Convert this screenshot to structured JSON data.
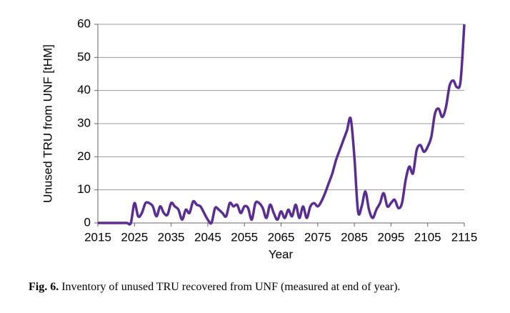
{
  "chart_data": {
    "type": "line",
    "xlabel": "Year",
    "ylabel": "Unused TRU from UNF [tHM]",
    "x": [
      2015,
      2016,
      2017,
      2018,
      2019,
      2020,
      2021,
      2022,
      2023,
      2024,
      2025,
      2026,
      2027,
      2028,
      2029,
      2030,
      2031,
      2032,
      2033,
      2034,
      2035,
      2036,
      2037,
      2038,
      2039,
      2040,
      2041,
      2042,
      2043,
      2044,
      2045,
      2046,
      2047,
      2048,
      2049,
      2050,
      2051,
      2052,
      2053,
      2054,
      2055,
      2056,
      2057,
      2058,
      2059,
      2060,
      2061,
      2062,
      2063,
      2064,
      2065,
      2066,
      2067,
      2068,
      2069,
      2070,
      2071,
      2072,
      2073,
      2074,
      2075,
      2076,
      2077,
      2078,
      2079,
      2080,
      2081,
      2082,
      2083,
      2084,
      2085,
      2086,
      2087,
      2088,
      2089,
      2090,
      2091,
      2092,
      2093,
      2094,
      2095,
      2096,
      2097,
      2098,
      2099,
      2100,
      2101,
      2102,
      2103,
      2104,
      2105,
      2106,
      2107,
      2108,
      2109,
      2110,
      2111,
      2112,
      2113,
      2114,
      2115
    ],
    "series": [
      {
        "name": "Unused TRU",
        "color": "#5a2d91",
        "values": [
          0,
          0,
          0,
          0,
          0,
          0,
          0,
          0,
          0,
          0,
          6,
          2,
          3,
          6,
          6,
          5,
          2,
          5,
          3,
          2.5,
          6,
          5,
          4,
          1,
          4,
          3,
          6.5,
          5.5,
          5,
          3,
          1,
          0,
          4.5,
          4,
          3,
          2,
          6,
          5,
          5.5,
          3,
          5,
          4.5,
          1,
          6,
          6,
          4.5,
          1.5,
          5.5,
          3,
          1,
          3.5,
          1.5,
          4,
          2,
          5.5,
          1.5,
          5,
          1.5,
          5,
          6,
          5,
          6.5,
          9,
          12,
          15,
          19,
          22,
          25,
          28,
          31.5,
          20,
          3.5,
          5,
          9.5,
          4,
          1.5,
          4,
          6,
          9,
          5,
          6,
          7,
          4.5,
          6,
          13,
          17,
          15,
          22,
          23.5,
          21.5,
          23,
          26,
          33,
          34.5,
          32,
          35,
          41.5,
          43,
          41,
          43,
          60
        ]
      }
    ],
    "xlim": [
      2015,
      2115
    ],
    "xticks": [
      2015,
      2025,
      2035,
      2045,
      2055,
      2065,
      2075,
      2085,
      2095,
      2105,
      2115
    ],
    "ylim": [
      0,
      60
    ],
    "yticks": [
      0,
      10,
      20,
      30,
      40,
      50,
      60
    ],
    "grid": true
  },
  "caption": {
    "label": "Fig. 6.",
    "text": "Inventory of unused TRU recovered from UNF (measured at end of year)."
  }
}
